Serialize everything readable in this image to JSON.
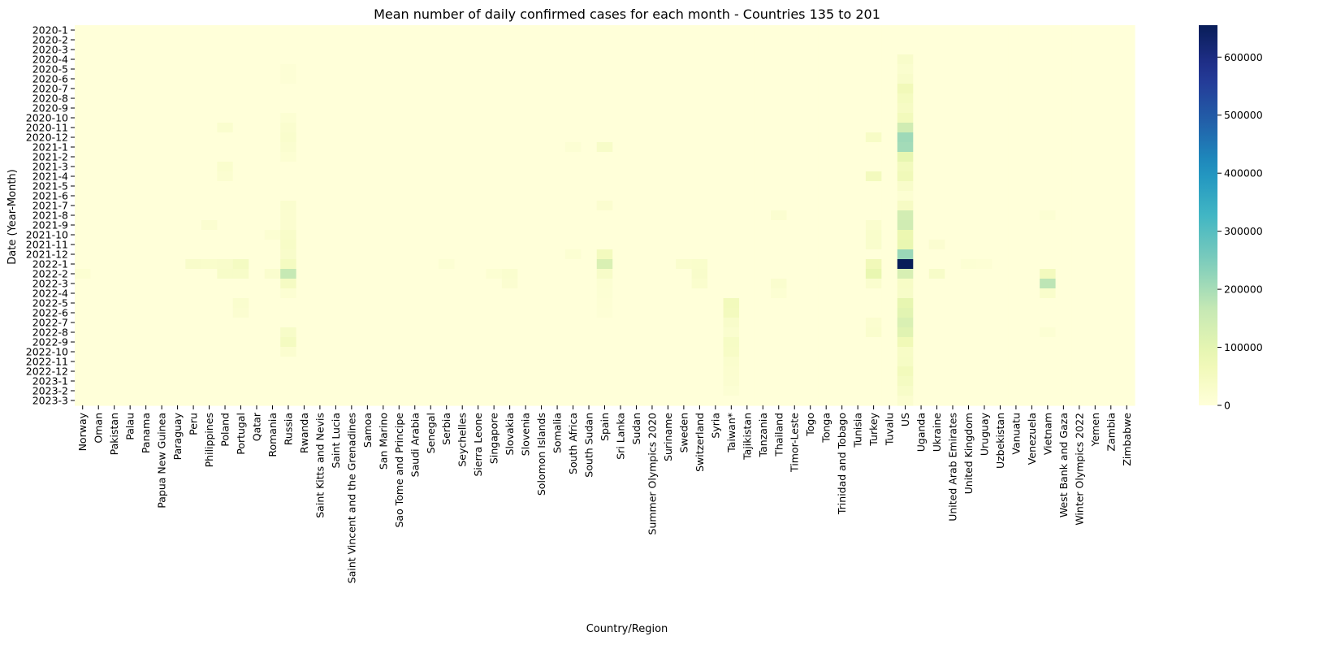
{
  "chart_data": {
    "type": "heatmap",
    "title": "Mean number of daily confirmed cases for each month - Countries 135 to 201",
    "xlabel": "Country/Region",
    "ylabel": "Date (Year-Month)",
    "colormap": "YlGnBu",
    "colorbar": {
      "min": 0,
      "max": 655000,
      "ticks": [
        0,
        100000,
        200000,
        300000,
        400000,
        500000,
        600000
      ],
      "tick_labels": [
        "0",
        "100000",
        "200000",
        "300000",
        "400000",
        "500000",
        "600000"
      ]
    },
    "x": [
      "Norway",
      "Oman",
      "Pakistan",
      "Palau",
      "Panama",
      "Papua New Guinea",
      "Paraguay",
      "Peru",
      "Philippines",
      "Poland",
      "Portugal",
      "Qatar",
      "Romania",
      "Russia",
      "Rwanda",
      "Saint Kitts and Nevis",
      "Saint Lucia",
      "Saint Vincent and the Grenadines",
      "Samoa",
      "San Marino",
      "Sao Tome and Principe",
      "Saudi Arabia",
      "Senegal",
      "Serbia",
      "Seychelles",
      "Sierra Leone",
      "Singapore",
      "Slovakia",
      "Slovenia",
      "Solomon Islands",
      "Somalia",
      "South Africa",
      "South Sudan",
      "Spain",
      "Sri Lanka",
      "Sudan",
      "Summer Olympics 2020",
      "Suriname",
      "Sweden",
      "Switzerland",
      "Syria",
      "Taiwan*",
      "Tajikistan",
      "Tanzania",
      "Thailand",
      "Timor-Leste",
      "Togo",
      "Tonga",
      "Trinidad and Tobago",
      "Tunisia",
      "Turkey",
      "Tuvalu",
      "US",
      "Uganda",
      "Ukraine",
      "United Arab Emirates",
      "United Kingdom",
      "Uruguay",
      "Uzbekistan",
      "Vanuatu",
      "Venezuela",
      "Vietnam",
      "West Bank and Gaza",
      "Winter Olympics 2022",
      "Yemen",
      "Zambia",
      "Zimbabwe"
    ],
    "y": [
      "2020-1",
      "2020-2",
      "2020-3",
      "2020-4",
      "2020-5",
      "2020-6",
      "2020-7",
      "2020-8",
      "2020-9",
      "2020-10",
      "2020-11",
      "2020-12",
      "2021-1",
      "2021-2",
      "2021-3",
      "2021-4",
      "2021-5",
      "2021-6",
      "2021-7",
      "2021-8",
      "2021-9",
      "2021-10",
      "2021-11",
      "2021-12",
      "2022-1",
      "2022-2",
      "2022-3",
      "2022-4",
      "2022-5",
      "2022-6",
      "2022-7",
      "2022-8",
      "2022-9",
      "2022-10",
      "2022-11",
      "2022-12",
      "2023-1",
      "2023-2",
      "2023-3"
    ],
    "sparse_values_note": "cells not listed are approximately 0",
    "cells": [
      {
        "x": "US",
        "y": "2020-4",
        "value": 30000
      },
      {
        "x": "US",
        "y": "2020-5",
        "value": 23000
      },
      {
        "x": "US",
        "y": "2020-6",
        "value": 30000
      },
      {
        "x": "US",
        "y": "2020-7",
        "value": 65000
      },
      {
        "x": "US",
        "y": "2020-8",
        "value": 52000
      },
      {
        "x": "US",
        "y": "2020-9",
        "value": 42000
      },
      {
        "x": "US",
        "y": "2020-10",
        "value": 60000
      },
      {
        "x": "US",
        "y": "2020-11",
        "value": 145000
      },
      {
        "x": "US",
        "y": "2020-12",
        "value": 210000
      },
      {
        "x": "US",
        "y": "2021-1",
        "value": 205000
      },
      {
        "x": "US",
        "y": "2021-2",
        "value": 95000
      },
      {
        "x": "US",
        "y": "2021-3",
        "value": 58000
      },
      {
        "x": "US",
        "y": "2021-4",
        "value": 66000
      },
      {
        "x": "US",
        "y": "2021-5",
        "value": 30000
      },
      {
        "x": "US",
        "y": "2021-6",
        "value": 14000
      },
      {
        "x": "US",
        "y": "2021-7",
        "value": 42000
      },
      {
        "x": "US",
        "y": "2021-8",
        "value": 140000
      },
      {
        "x": "US",
        "y": "2021-9",
        "value": 145000
      },
      {
        "x": "US",
        "y": "2021-10",
        "value": 85000
      },
      {
        "x": "US",
        "y": "2021-11",
        "value": 90000
      },
      {
        "x": "US",
        "y": "2021-12",
        "value": 215000
      },
      {
        "x": "US",
        "y": "2022-1",
        "value": 655000
      },
      {
        "x": "US",
        "y": "2022-2",
        "value": 130000
      },
      {
        "x": "US",
        "y": "2022-3",
        "value": 38000
      },
      {
        "x": "US",
        "y": "2022-4",
        "value": 35000
      },
      {
        "x": "US",
        "y": "2022-5",
        "value": 95000
      },
      {
        "x": "US",
        "y": "2022-6",
        "value": 105000
      },
      {
        "x": "US",
        "y": "2022-7",
        "value": 125000
      },
      {
        "x": "US",
        "y": "2022-8",
        "value": 110000
      },
      {
        "x": "US",
        "y": "2022-9",
        "value": 70000
      },
      {
        "x": "US",
        "y": "2022-10",
        "value": 38000
      },
      {
        "x": "US",
        "y": "2022-11",
        "value": 40000
      },
      {
        "x": "US",
        "y": "2022-12",
        "value": 60000
      },
      {
        "x": "US",
        "y": "2023-1",
        "value": 48000
      },
      {
        "x": "US",
        "y": "2023-2",
        "value": 35000
      },
      {
        "x": "US",
        "y": "2023-3",
        "value": 20000
      },
      {
        "x": "Russia",
        "y": "2020-5",
        "value": 9000
      },
      {
        "x": "Russia",
        "y": "2020-6",
        "value": 8000
      },
      {
        "x": "Russia",
        "y": "2020-10",
        "value": 15000
      },
      {
        "x": "Russia",
        "y": "2020-11",
        "value": 22000
      },
      {
        "x": "Russia",
        "y": "2020-12",
        "value": 27000
      },
      {
        "x": "Russia",
        "y": "2021-1",
        "value": 21000
      },
      {
        "x": "Russia",
        "y": "2021-2",
        "value": 14000
      },
      {
        "x": "Russia",
        "y": "2021-7",
        "value": 23000
      },
      {
        "x": "Russia",
        "y": "2021-8",
        "value": 20000
      },
      {
        "x": "Russia",
        "y": "2021-9",
        "value": 20000
      },
      {
        "x": "Russia",
        "y": "2021-10",
        "value": 32000
      },
      {
        "x": "Russia",
        "y": "2021-11",
        "value": 37000
      },
      {
        "x": "Russia",
        "y": "2021-12",
        "value": 30000
      },
      {
        "x": "Russia",
        "y": "2022-1",
        "value": 50000
      },
      {
        "x": "Russia",
        "y": "2022-2",
        "value": 165000
      },
      {
        "x": "Russia",
        "y": "2022-3",
        "value": 45000
      },
      {
        "x": "Russia",
        "y": "2022-4",
        "value": 15000
      },
      {
        "x": "Russia",
        "y": "2022-8",
        "value": 35000
      },
      {
        "x": "Russia",
        "y": "2022-9",
        "value": 50000
      },
      {
        "x": "Russia",
        "y": "2022-10",
        "value": 20000
      },
      {
        "x": "Vietnam",
        "y": "2022-2",
        "value": 55000
      },
      {
        "x": "Vietnam",
        "y": "2022-3",
        "value": 175000
      },
      {
        "x": "Vietnam",
        "y": "2022-4",
        "value": 28000
      },
      {
        "x": "Vietnam",
        "y": "2021-8",
        "value": 12000
      },
      {
        "x": "Vietnam",
        "y": "2022-8",
        "value": 12000
      },
      {
        "x": "Turkey",
        "y": "2020-12",
        "value": 38000
      },
      {
        "x": "Turkey",
        "y": "2021-4",
        "value": 55000
      },
      {
        "x": "Turkey",
        "y": "2021-9",
        "value": 22000
      },
      {
        "x": "Turkey",
        "y": "2021-10",
        "value": 28000
      },
      {
        "x": "Turkey",
        "y": "2021-11",
        "value": 27000
      },
      {
        "x": "Turkey",
        "y": "2022-1",
        "value": 65000
      },
      {
        "x": "Turkey",
        "y": "2022-2",
        "value": 90000
      },
      {
        "x": "Turkey",
        "y": "2022-3",
        "value": 22000
      },
      {
        "x": "Turkey",
        "y": "2022-7",
        "value": 20000
      },
      {
        "x": "Turkey",
        "y": "2022-8",
        "value": 25000
      },
      {
        "x": "Spain",
        "y": "2021-1",
        "value": 35000
      },
      {
        "x": "Spain",
        "y": "2021-7",
        "value": 20000
      },
      {
        "x": "Spain",
        "y": "2021-12",
        "value": 55000
      },
      {
        "x": "Spain",
        "y": "2022-1",
        "value": 125000
      },
      {
        "x": "Spain",
        "y": "2022-2",
        "value": 35000
      },
      {
        "x": "Spain",
        "y": "2022-3",
        "value": 15000
      },
      {
        "x": "Spain",
        "y": "2022-4",
        "value": 12000
      },
      {
        "x": "Spain",
        "y": "2022-5",
        "value": 10000
      },
      {
        "x": "Spain",
        "y": "2022-6",
        "value": 8000
      },
      {
        "x": "Taiwan*",
        "y": "2022-5",
        "value": 60000
      },
      {
        "x": "Taiwan*",
        "y": "2022-6",
        "value": 55000
      },
      {
        "x": "Taiwan*",
        "y": "2022-7",
        "value": 30000
      },
      {
        "x": "Taiwan*",
        "y": "2022-8",
        "value": 22000
      },
      {
        "x": "Taiwan*",
        "y": "2022-9",
        "value": 40000
      },
      {
        "x": "Taiwan*",
        "y": "2022-10",
        "value": 38000
      },
      {
        "x": "Taiwan*",
        "y": "2022-11",
        "value": 25000
      },
      {
        "x": "Taiwan*",
        "y": "2022-12",
        "value": 20000
      },
      {
        "x": "Taiwan*",
        "y": "2023-1",
        "value": 18000
      },
      {
        "x": "Taiwan*",
        "y": "2023-2",
        "value": 12000
      },
      {
        "x": "Poland",
        "y": "2020-11",
        "value": 22000
      },
      {
        "x": "Poland",
        "y": "2021-3",
        "value": 25000
      },
      {
        "x": "Poland",
        "y": "2021-4",
        "value": 18000
      },
      {
        "x": "Poland",
        "y": "2022-1",
        "value": 30000
      },
      {
        "x": "Poland",
        "y": "2022-2",
        "value": 35000
      },
      {
        "x": "Portugal",
        "y": "2022-1",
        "value": 48000
      },
      {
        "x": "Portugal",
        "y": "2022-2",
        "value": 35000
      },
      {
        "x": "Portugal",
        "y": "2022-5",
        "value": 22000
      },
      {
        "x": "Portugal",
        "y": "2022-6",
        "value": 18000
      },
      {
        "x": "Switzerland",
        "y": "2022-1",
        "value": 28000
      },
      {
        "x": "Switzerland",
        "y": "2022-2",
        "value": 30000
      },
      {
        "x": "Switzerland",
        "y": "2022-3",
        "value": 25000
      },
      {
        "x": "Sweden",
        "y": "2022-1",
        "value": 25000
      },
      {
        "x": "Slovakia",
        "y": "2022-2",
        "value": 22000
      },
      {
        "x": "Slovakia",
        "y": "2022-3",
        "value": 18000
      },
      {
        "x": "Ukraine",
        "y": "2021-11",
        "value": 18000
      },
      {
        "x": "Ukraine",
        "y": "2022-2",
        "value": 35000
      },
      {
        "x": "Philippines",
        "y": "2021-9",
        "value": 18000
      },
      {
        "x": "Peru",
        "y": "2022-1",
        "value": 30000
      },
      {
        "x": "Philippines",
        "y": "2022-1",
        "value": 28000
      },
      {
        "x": "Thailand",
        "y": "2021-8",
        "value": 18000
      },
      {
        "x": "Thailand",
        "y": "2022-3",
        "value": 22000
      },
      {
        "x": "Thailand",
        "y": "2022-4",
        "value": 15000
      },
      {
        "x": "Romania",
        "y": "2021-10",
        "value": 14000
      },
      {
        "x": "Romania",
        "y": "2022-2",
        "value": 22000
      },
      {
        "x": "Norway",
        "y": "2022-2",
        "value": 15000
      },
      {
        "x": "South Africa",
        "y": "2021-1",
        "value": 12000
      },
      {
        "x": "South Africa",
        "y": "2021-12",
        "value": 14000
      },
      {
        "x": "Serbia",
        "y": "2022-1",
        "value": 12000
      },
      {
        "x": "Singapore",
        "y": "2022-2",
        "value": 14000
      },
      {
        "x": "United Kingdom",
        "y": "2022-1",
        "value": 12000
      },
      {
        "x": "Uruguay",
        "y": "2022-1",
        "value": 10000
      }
    ]
  }
}
